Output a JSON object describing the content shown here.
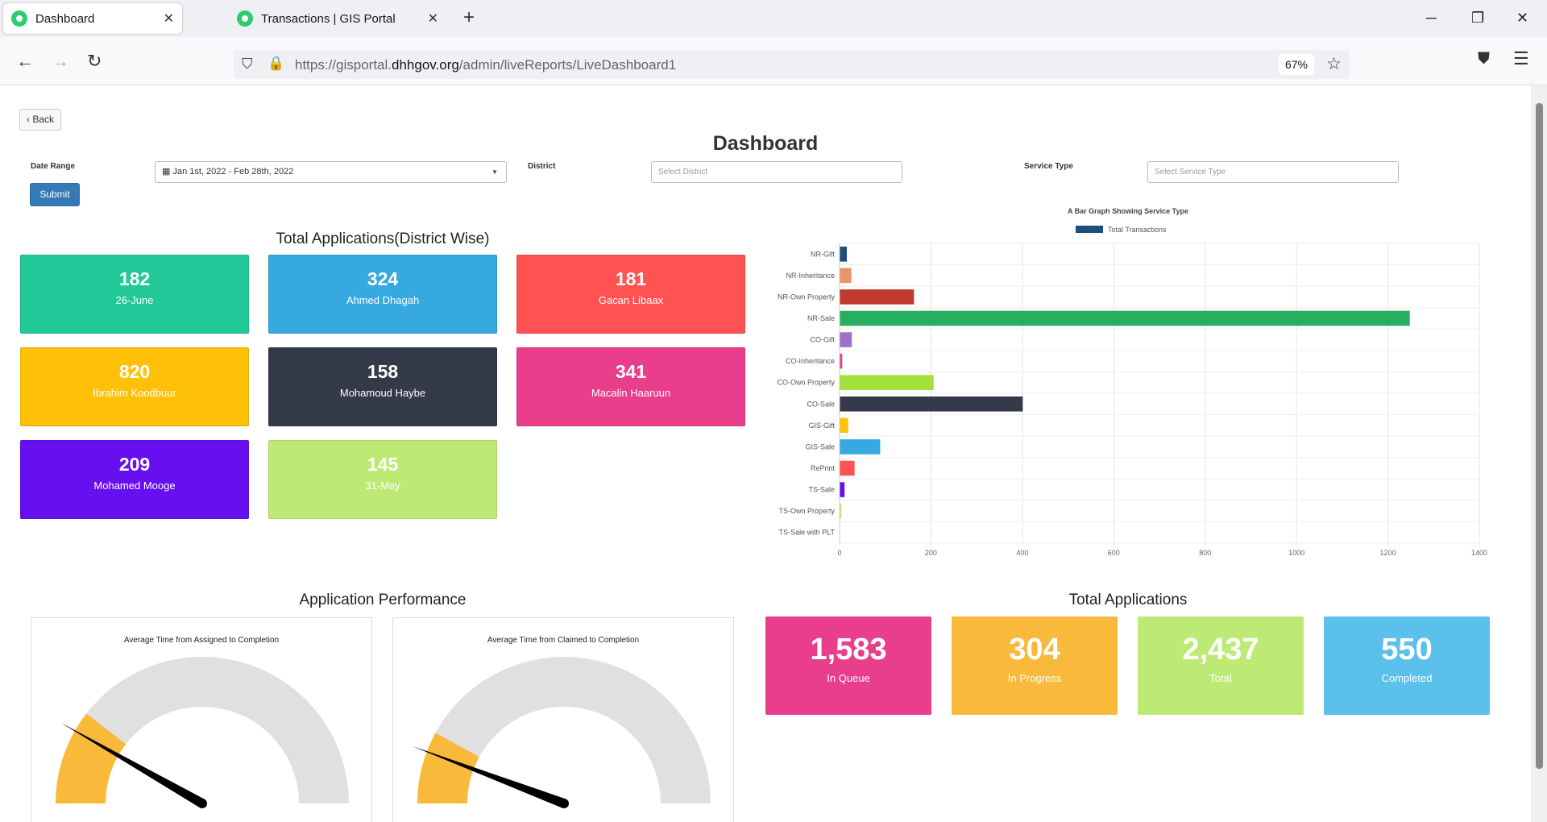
{
  "browser": {
    "tabs": [
      {
        "title": "Dashboard",
        "active": true
      },
      {
        "title": "Transactions | GIS Portal",
        "active": false
      }
    ],
    "url_prefix": "https://gisportal.",
    "url_domain": "dhhgov.org",
    "url_path": "/admin/liveReports/LiveDashboard1",
    "zoom": "67%"
  },
  "page": {
    "back_label": "Back",
    "title": "Dashboard",
    "filters": {
      "date_range_label": "Date Range",
      "date_range_value": "Jan 1st, 2022 - Feb 28th, 2022",
      "district_label": "District",
      "district_placeholder": "Select District",
      "service_type_label": "Service Type",
      "service_type_placeholder": "Select Service Type",
      "submit_label": "Submit"
    },
    "district_section_title": "Total Applications(District Wise)",
    "district_cards": [
      {
        "value": "182",
        "label": "26-June",
        "color": "#20c997"
      },
      {
        "value": "324",
        "label": "Ahmed Dhagah",
        "color": "#36a9e1"
      },
      {
        "value": "181",
        "label": "Gacan Libaax",
        "color": "#ff5252"
      },
      {
        "value": "820",
        "label": "Ibrahim Koodbuur",
        "color": "#ffc107"
      },
      {
        "value": "158",
        "label": "Mohamoud Haybe",
        "color": "#343a4a"
      },
      {
        "value": "341",
        "label": "Macalin Haaruun",
        "color": "#e83e8c"
      },
      {
        "value": "209",
        "label": "Mohamed Mooge",
        "color": "#6610f2"
      },
      {
        "value": "145",
        "label": "31-May",
        "color": "#bdea75"
      }
    ],
    "performance_title": "Application Performance",
    "gauges": [
      {
        "title": "Average Time from Assigned to Completion",
        "fill_fraction": 0.21,
        "needle_fraction": 0.165,
        "fill_color": "#f9b93a",
        "track_color": "#e0e0e0"
      },
      {
        "title": "Average Time from Claimed to Completion",
        "fill_fraction": 0.16,
        "needle_fraction": 0.115,
        "fill_color": "#f9b93a",
        "track_color": "#e0e0e0"
      }
    ],
    "totals_title": "Total Applications",
    "total_cards": [
      {
        "value": "1,583",
        "label": "In Queue",
        "color": "#e83e8c"
      },
      {
        "value": "304",
        "label": "In Progress",
        "color": "#f9b93a"
      },
      {
        "value": "2,437",
        "label": "Total",
        "color": "#bdea75"
      },
      {
        "value": "550",
        "label": "Completed",
        "color": "#5bc0eb"
      }
    ]
  },
  "chart_data": {
    "type": "bar",
    "orientation": "horizontal",
    "title": "A Bar Graph Showing Service Type",
    "legend": {
      "position": "top",
      "label": "Total Transactions",
      "color": "#1f4e79"
    },
    "categories": [
      "NR-Gift",
      "NR-Inheritance",
      "NR-Own Property",
      "NR-Sale",
      "CO-Gift",
      "CO-Inheritance",
      "CO-Own Property",
      "CO-Sale",
      "GIS-Gift",
      "GIS-Sale",
      "RePrint",
      "TS-Sale",
      "TS-Own Property",
      "TS-Sale with PLT"
    ],
    "series": [
      {
        "name": "Total Transactions",
        "values": [
          15,
          25,
          162,
          1247,
          26,
          5,
          205,
          400,
          18,
          88,
          32,
          10,
          3,
          0
        ]
      }
    ],
    "bar_colors": [
      "#1f4e79",
      "#e8956a",
      "#c0392b",
      "#27ae60",
      "#a070c8",
      "#e83e8c",
      "#a3e03a",
      "#343a4a",
      "#ffc107",
      "#36a9e1",
      "#ff5252",
      "#6610f2",
      "#bdea75",
      "#cccccc"
    ],
    "xlim": [
      0,
      1400
    ],
    "xticks": [
      0,
      200,
      400,
      600,
      800,
      1000,
      1200,
      1400
    ],
    "grid": true
  }
}
